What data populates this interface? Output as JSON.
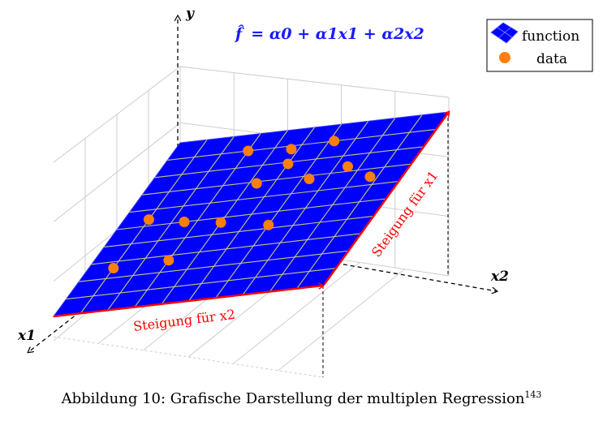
{
  "axes": {
    "x1": "x1",
    "x2": "x2",
    "y": "y"
  },
  "formula": {
    "lhs": "f̂",
    "rhs": "= α0 + α1x1 + α2x2"
  },
  "slope_labels": {
    "x2": "Steigung für x2",
    "x1": "Steigung für x1"
  },
  "legend": [
    {
      "label": "function",
      "color": "#0000ff"
    },
    {
      "label": "data",
      "color": "#ff7f0e"
    }
  ],
  "colors": {
    "plane": "#0000ff",
    "points": "#ff7f0e",
    "slope": "#ff0000",
    "formula": "#1a1aff"
  },
  "caption": {
    "text": "Abbildung 10: Grafische Darstellung der multiplen Regression",
    "footnote": "143"
  },
  "chart_data": {
    "type": "scatter",
    "title": "",
    "points": [
      {
        "x1": 0.74,
        "x2": 0.1
      },
      {
        "x1": 0.46,
        "x2": 0.1
      },
      {
        "x1": 0.73,
        "x2": 0.3
      },
      {
        "x1": 0.5,
        "x2": 0.25
      },
      {
        "x1": 0.1,
        "x2": 0.3
      },
      {
        "x1": 0.21,
        "x2": 0.5
      },
      {
        "x1": 0.32,
        "x2": 0.63
      },
      {
        "x1": 0.1,
        "x2": 0.62
      },
      {
        "x1": 0.12,
        "x2": 0.47
      },
      {
        "x1": 0.53,
        "x2": 0.4
      },
      {
        "x1": 0.31,
        "x2": 0.43
      },
      {
        "x1": 0.35,
        "x2": 0.87
      },
      {
        "x1": 0.58,
        "x2": 0.6
      },
      {
        "x1": 0.27,
        "x2": 0.75
      }
    ]
  }
}
